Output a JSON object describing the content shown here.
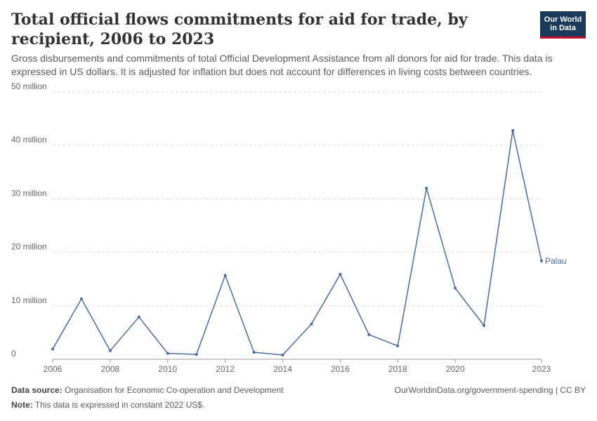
{
  "header": {
    "title": "Total official flows commitments for aid for trade, by recipient, 2006 to 2023",
    "subtitle": "Gross disbursements and commitments of total Official Development Assistance from all donors for aid for trade. This data is expressed in US dollars. It is adjusted for inflation but does not account for differences in living costs between countries."
  },
  "logo": {
    "line1": "Our World",
    "line2": "in Data",
    "bg": "#1a3a5c",
    "accent": "#c8102e"
  },
  "footer": {
    "source_label": "Data source:",
    "source_text": "Organisation for Economic Co-operation and Development",
    "note_label": "Note:",
    "note_text": "This data is expressed in constant 2022 US$.",
    "url": "OurWorldinData.org/government-spending | CC BY"
  },
  "chart_data": {
    "type": "line",
    "x": [
      2006,
      2007,
      2008,
      2009,
      2010,
      2011,
      2012,
      2013,
      2014,
      2015,
      2016,
      2017,
      2018,
      2019,
      2020,
      2021,
      2022,
      2023
    ],
    "series": [
      {
        "name": "Palau",
        "color": "#4c6a9c",
        "values": [
          1900000,
          11300000,
          1600000,
          7900000,
          1100000,
          900000,
          15700000,
          1300000,
          800000,
          6600000,
          15900000,
          4600000,
          2500000,
          32000000,
          13300000,
          6300000,
          42800000,
          18400000
        ]
      }
    ],
    "ylim": [
      0,
      50000000
    ],
    "yticks": [
      0,
      10000000,
      20000000,
      30000000,
      40000000,
      50000000
    ],
    "ytick_labels": [
      "0",
      "10 million",
      "20 million",
      "30 million",
      "40 million",
      "50 million"
    ],
    "xticks": [
      2006,
      2008,
      2010,
      2012,
      2014,
      2016,
      2018,
      2020,
      2023
    ],
    "xtick_labels": [
      "2006",
      "2008",
      "2010",
      "2012",
      "2014",
      "2016",
      "2018",
      "2020",
      "2023"
    ],
    "xlim": [
      2006,
      2023
    ],
    "grid": true,
    "xlabel": "",
    "ylabel": ""
  }
}
